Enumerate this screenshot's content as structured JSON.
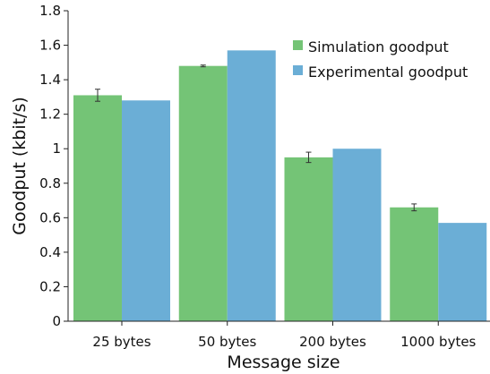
{
  "chart_data": {
    "type": "bar",
    "title": "",
    "xlabel": "Message size",
    "ylabel": "Goodput (kbit/s)",
    "categories": [
      "25 bytes",
      "50 bytes",
      "200 bytes",
      "1000 bytes"
    ],
    "ylim": [
      0,
      1.8
    ],
    "yticks": [
      0,
      0.2,
      0.4,
      0.6,
      0.8,
      1,
      1.2,
      1.4,
      1.6,
      1.8
    ],
    "grid": false,
    "legend_position": "top-right",
    "series": [
      {
        "name": "Simulation goodput",
        "color": "#74c476",
        "values": [
          1.31,
          1.48,
          0.95,
          0.66
        ],
        "error": [
          0.035,
          0.005,
          0.03,
          0.02
        ]
      },
      {
        "name": "Experimental goodput",
        "color": "#6baed6",
        "values": [
          1.28,
          1.57,
          1.0,
          0.57
        ]
      }
    ]
  }
}
